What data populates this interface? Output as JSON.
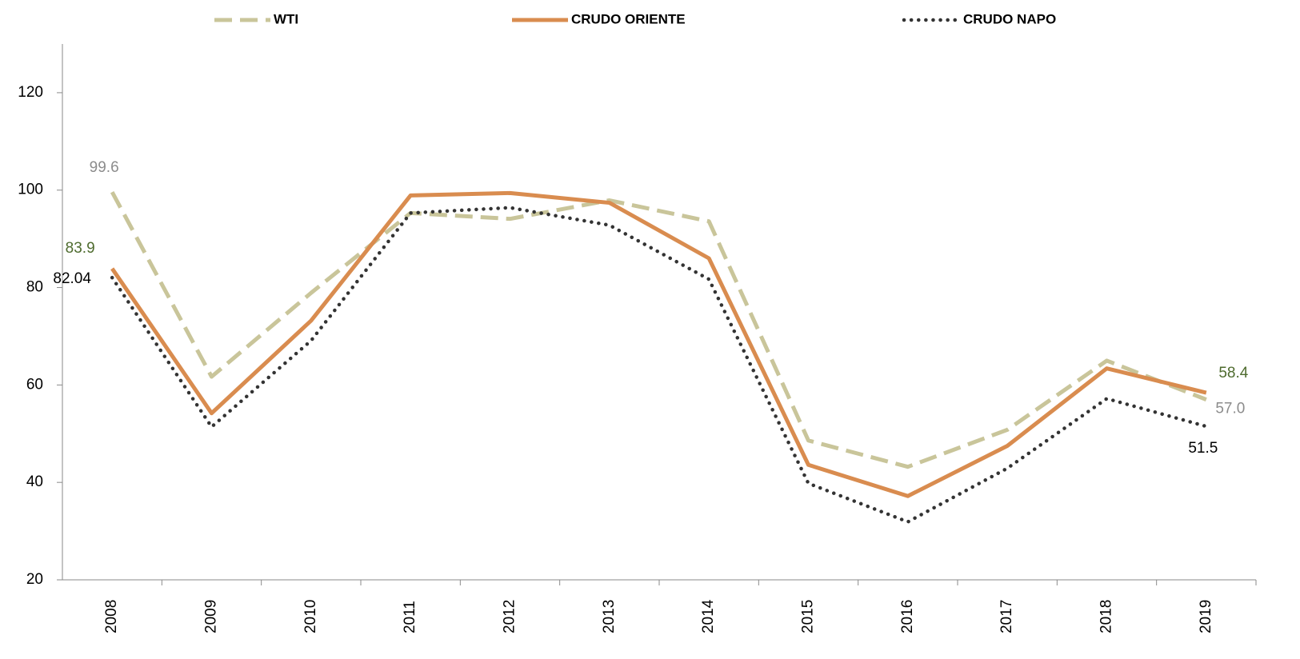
{
  "chart_data": {
    "type": "line",
    "categories": [
      "2008",
      "2009",
      "2010",
      "2011",
      "2012",
      "2013",
      "2014",
      "2015",
      "2016",
      "2017",
      "2018",
      "2019"
    ],
    "series": [
      {
        "name": "WTI",
        "color": "#c9c59a",
        "style": "dashed",
        "label_color": "#8c8c8c",
        "values": [
          99.6,
          61.7,
          78.9,
          95.3,
          94.1,
          97.9,
          93.6,
          48.6,
          43.2,
          50.8,
          65.0,
          57.0
        ],
        "value_labels": [
          "99.6",
          null,
          null,
          null,
          null,
          null,
          null,
          null,
          null,
          null,
          null,
          "57.0"
        ]
      },
      {
        "name": "CRUDO ORIENTE",
        "color": "#d98c4f",
        "style": "solid",
        "label_color": "#4e6b2e",
        "values": [
          83.9,
          54.2,
          73.2,
          98.9,
          99.4,
          97.4,
          86.0,
          43.6,
          37.2,
          47.5,
          63.4,
          58.4
        ],
        "value_labels": [
          "83.9",
          null,
          null,
          null,
          null,
          null,
          null,
          null,
          null,
          null,
          null,
          "58.4"
        ]
      },
      {
        "name": "CRUDO NAPO",
        "color": "#333333",
        "style": "dotted",
        "label_color": "#000000",
        "values": [
          82.04,
          51.4,
          69.1,
          95.3,
          96.4,
          92.8,
          81.7,
          39.8,
          31.9,
          42.9,
          57.2,
          51.5
        ],
        "value_labels": [
          "82.04",
          null,
          null,
          null,
          null,
          null,
          null,
          null,
          null,
          null,
          null,
          "51.5"
        ]
      }
    ],
    "ylim": [
      20,
      130
    ],
    "yticks": [
      20,
      40,
      60,
      80,
      100,
      120
    ],
    "grid": false,
    "legend": "top"
  }
}
